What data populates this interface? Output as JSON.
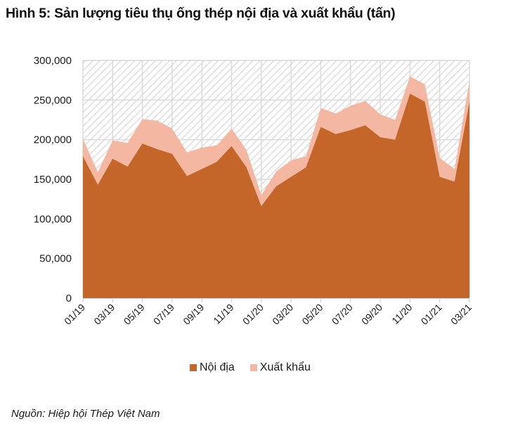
{
  "title": "Hình 5: Sản lượng tiêu thụ ống thép nội địa và xuất khẩu (tấn)",
  "source": "Nguồn: Hiệp hội Thép Việt Nam",
  "colors": {
    "domestic": "#c4652a",
    "export": "#f4b8a2",
    "grid": "#d9d9d9",
    "hatch": "#d4d4d4"
  },
  "chart_data": {
    "type": "area",
    "stacked": true,
    "title": "Hình 5: Sản lượng tiêu thụ ống thép nội địa và xuất khẩu (tấn)",
    "xlabel": "",
    "ylabel": "",
    "ylim": [
      0,
      300000
    ],
    "yticks": [
      0,
      50000,
      100000,
      150000,
      200000,
      250000,
      300000
    ],
    "ytick_labels": [
      "0",
      "50,000",
      "100,000",
      "150,000",
      "200,000",
      "250,000",
      "300,000"
    ],
    "x": [
      "01/19",
      "02/19",
      "03/19",
      "04/19",
      "05/19",
      "06/19",
      "07/19",
      "08/19",
      "09/19",
      "10/19",
      "11/19",
      "12/19",
      "01/20",
      "02/20",
      "03/20",
      "04/20",
      "05/20",
      "06/20",
      "07/20",
      "08/20",
      "09/20",
      "10/20",
      "11/20",
      "12/20",
      "01/21",
      "02/21",
      "03/21"
    ],
    "xtick_labels": [
      "01/19",
      "03/19",
      "05/19",
      "07/19",
      "09/19",
      "11/19",
      "01/20",
      "03/20",
      "05/20",
      "07/20",
      "09/20",
      "11/20",
      "01/21",
      "03/21"
    ],
    "grid": true,
    "legend": "bottom-center",
    "series": [
      {
        "name": "Nội địa",
        "values": [
          179000,
          143000,
          176000,
          166000,
          195000,
          188000,
          182000,
          154000,
          163000,
          172000,
          192000,
          165000,
          116000,
          141000,
          153000,
          165000,
          216000,
          207000,
          212000,
          218000,
          203000,
          200000,
          258000,
          248000,
          153000,
          147000,
          248000
        ]
      },
      {
        "name": "Xuất khẩu",
        "values": [
          22000,
          16000,
          23000,
          30000,
          31000,
          36000,
          32000,
          30000,
          27000,
          21000,
          22000,
          22000,
          14000,
          19000,
          21000,
          14000,
          24000,
          26000,
          31000,
          31000,
          29000,
          25000,
          22000,
          22000,
          24000,
          16000,
          26000
        ]
      }
    ]
  },
  "legend": {
    "items": [
      {
        "label": "Nội địa"
      },
      {
        "label": "Xuất khẩu"
      }
    ]
  }
}
